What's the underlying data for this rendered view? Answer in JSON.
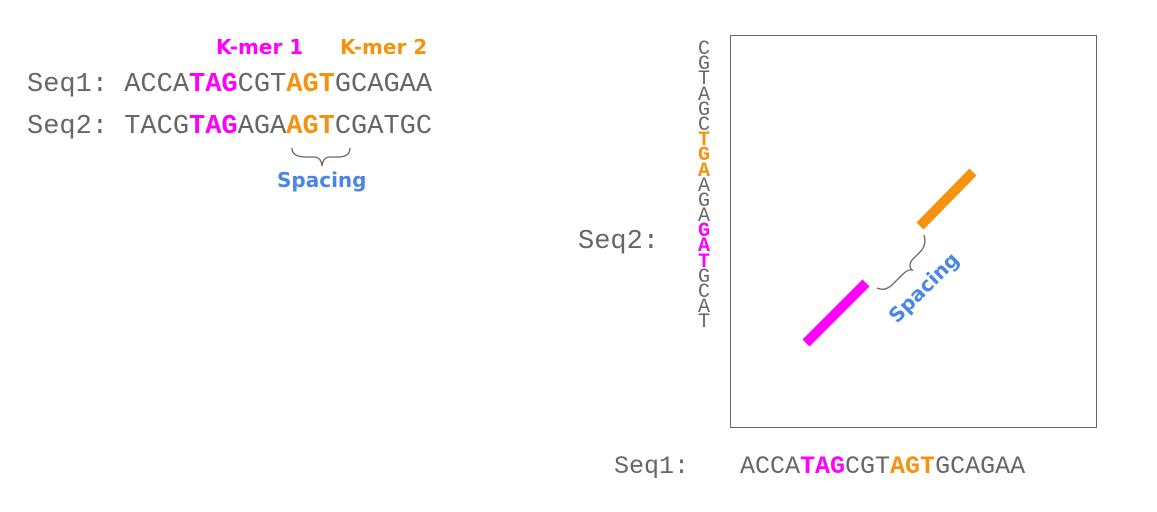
{
  "colors": {
    "kmer1": "#FF00FF",
    "kmer2": "#F5920F",
    "spacing": "#4A86E8",
    "seq": "#666666"
  },
  "legend": {
    "kmer1": "K-mer 1",
    "kmer2": "K-mer 2"
  },
  "left": {
    "seq1": {
      "label": "Seq1: ",
      "pre": "ACCA",
      "k1": "TAG",
      "mid": "CGT",
      "k2": "AGT",
      "post": "GCAGAA"
    },
    "seq2": {
      "label": "Seq2: ",
      "pre": "TACG",
      "k1": "TAG",
      "mid": "AGA",
      "k2": "AGT",
      "post": "CGATGC"
    },
    "spacing_label": "Spacing"
  },
  "plot": {
    "y_label": "Seq2:",
    "y_seq": [
      "C",
      "G",
      "T",
      "A",
      "G",
      "C",
      "T",
      "G",
      "A",
      "A",
      "G",
      "A",
      "G",
      "A",
      "T",
      "G",
      "C",
      "A",
      "T"
    ],
    "y_k2_range": [
      6,
      8
    ],
    "y_k1_range": [
      12,
      14
    ],
    "x_seq": {
      "label": "Seq1:",
      "pre": "ACCA",
      "k1": "TAG",
      "mid": "CGT",
      "k2": "AGT",
      "post": "GCAGAA"
    },
    "spacing_label": "Spacing"
  }
}
